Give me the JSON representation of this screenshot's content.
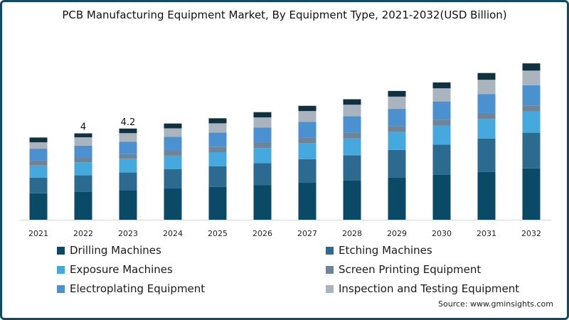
{
  "chart_data": {
    "type": "bar",
    "stacked": true,
    "title": "PCB Manufacturing Equipment Market, By Equipment Type, 2021-2032(USD Billion)",
    "xlabel": "",
    "ylabel": "",
    "ylim": [
      0,
      7.5
    ],
    "grid": false,
    "legend_position": "bottom",
    "categories": [
      "2021",
      "2022",
      "2023",
      "2024",
      "2025",
      "2026",
      "2027",
      "2028",
      "2029",
      "2030",
      "2031",
      "2032"
    ],
    "series": [
      {
        "name": "Drilling Machines",
        "color": "#0b4a66",
        "values": [
          1.21,
          1.27,
          1.36,
          1.43,
          1.5,
          1.59,
          1.69,
          1.79,
          1.92,
          2.05,
          2.19,
          2.35
        ]
      },
      {
        "name": "Etching Machines",
        "color": "#2c6a8f",
        "values": [
          0.71,
          0.76,
          0.8,
          0.89,
          0.94,
          1.0,
          1.08,
          1.16,
          1.27,
          1.39,
          1.52,
          1.63
        ]
      },
      {
        "name": "Exposure Machines",
        "color": "#46a9de",
        "values": [
          0.56,
          0.6,
          0.63,
          0.61,
          0.65,
          0.69,
          0.73,
          0.77,
          0.82,
          0.87,
          0.9,
          0.98
        ]
      },
      {
        "name": "Screen Printing Equipment",
        "color": "#6f8597",
        "values": [
          0.24,
          0.2,
          0.21,
          0.24,
          0.25,
          0.25,
          0.26,
          0.26,
          0.27,
          0.27,
          0.27,
          0.27
        ]
      },
      {
        "name": "Electroplating Equipment",
        "color": "#4b91d0",
        "values": [
          0.53,
          0.56,
          0.57,
          0.62,
          0.65,
          0.69,
          0.72,
          0.75,
          0.79,
          0.83,
          0.87,
          0.92
        ]
      },
      {
        "name": "Inspection and Testing Equipment",
        "color": "#a9b4be",
        "values": [
          0.29,
          0.38,
          0.39,
          0.39,
          0.42,
          0.46,
          0.49,
          0.53,
          0.56,
          0.6,
          0.65,
          0.67
        ]
      },
      {
        "name": "",
        "color": "#10313f",
        "values": [
          0.22,
          0.18,
          0.21,
          0.22,
          0.23,
          0.24,
          0.24,
          0.25,
          0.26,
          0.27,
          0.31,
          0.33
        ]
      }
    ],
    "annotations": [
      {
        "category": "2022",
        "label": "4"
      },
      {
        "category": "2023",
        "label": "4.2"
      }
    ]
  },
  "source": "Source: www.gminsights.com"
}
